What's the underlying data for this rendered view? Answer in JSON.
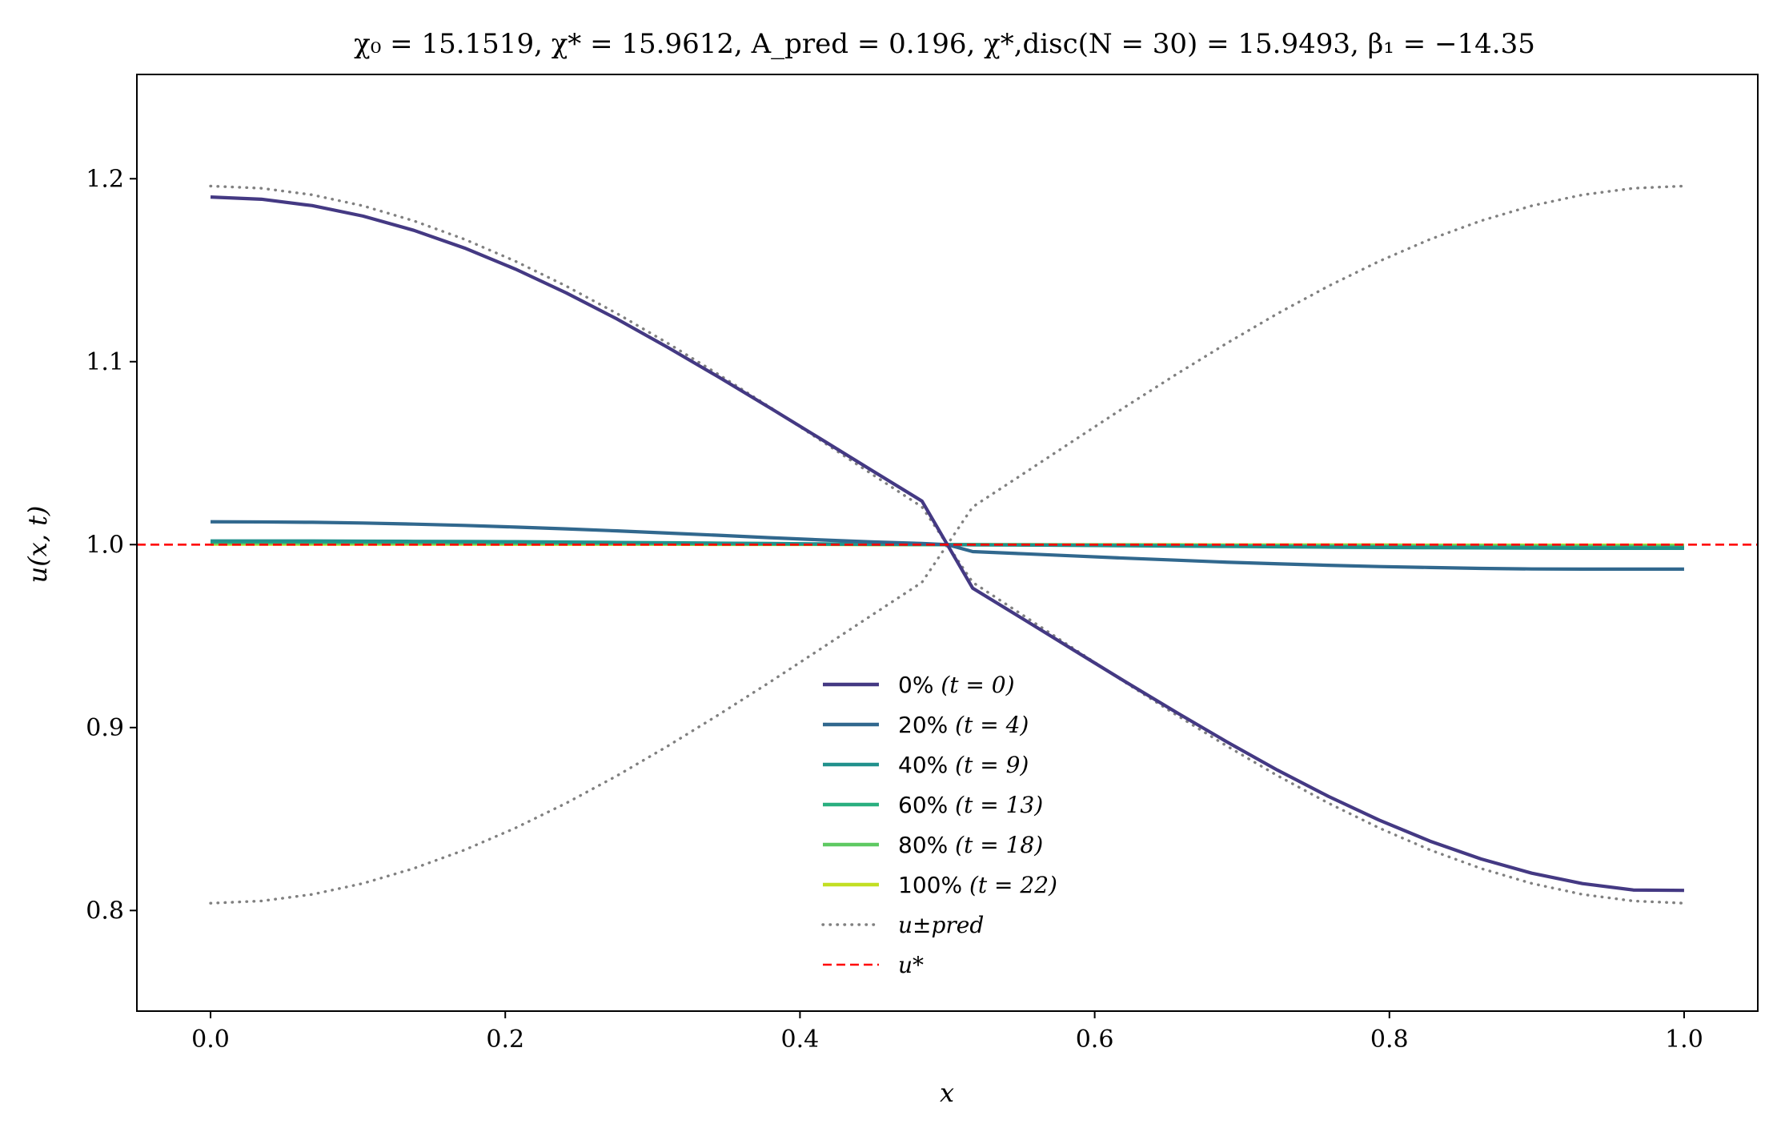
{
  "chart_data": {
    "type": "line",
    "title": "χ₀ = 15.1519,  χ* = 15.9612,  A_pred = 0.196,  χ*,disc(N = 30) = 15.9493,  β₁ = −14.35",
    "xlabel": "x",
    "ylabel": "u(x, t)",
    "xlim": [
      -0.05,
      1.05
    ],
    "ylim": [
      0.745,
      1.257
    ],
    "x_ticks": [
      0.0,
      0.2,
      0.4,
      0.6,
      0.8,
      1.0
    ],
    "x_tick_labels": [
      "0.0",
      "0.2",
      "0.4",
      "0.6",
      "0.8",
      "1.0"
    ],
    "y_ticks": [
      0.8,
      0.9,
      1.0,
      1.1,
      1.2
    ],
    "y_tick_labels": [
      "0.8",
      "0.9",
      "1.0",
      "1.1",
      "1.2"
    ],
    "grid": false,
    "legend_position": "lower-center",
    "x": [
      0.0,
      0.0345,
      0.069,
      0.1034,
      0.1379,
      0.1724,
      0.2069,
      0.2414,
      0.2759,
      0.3103,
      0.3448,
      0.3793,
      0.4138,
      0.4483,
      0.4828,
      0.5,
      0.5172,
      0.5517,
      0.5862,
      0.6207,
      0.6552,
      0.6897,
      0.7241,
      0.7586,
      0.7931,
      0.8276,
      0.8621,
      0.8966,
      0.931,
      0.9655,
      1.0
    ],
    "series": [
      {
        "name": "0% (t = 0)",
        "color": "#443983",
        "style": "solid",
        "values": [
          1.19,
          1.1888,
          1.1853,
          1.1796,
          1.1718,
          1.1621,
          1.1506,
          1.1376,
          1.1233,
          1.1078,
          1.0916,
          1.0749,
          1.0579,
          1.0408,
          1.0238,
          1.0,
          0.9762,
          0.9592,
          0.9421,
          0.9251,
          0.9084,
          0.8922,
          0.8767,
          0.8624,
          0.8494,
          0.8379,
          0.8282,
          0.8204,
          0.8147,
          0.8112,
          0.811
        ]
      },
      {
        "name": "20% (t = 4)",
        "color": "#31688e",
        "style": "solid",
        "values": [
          1.0125,
          1.0124,
          1.0122,
          1.0118,
          1.0112,
          1.0105,
          1.0096,
          1.0086,
          1.0075,
          1.0063,
          1.0051,
          1.0038,
          1.0026,
          1.0015,
          1.0006,
          1.0,
          0.9962,
          0.995,
          0.9938,
          0.9926,
          0.9915,
          0.9904,
          0.9895,
          0.9887,
          0.988,
          0.9875,
          0.987,
          0.9867,
          0.9866,
          0.9866,
          0.9866
        ]
      },
      {
        "name": "40% (t = 9)",
        "color": "#21918c",
        "style": "solid",
        "values": [
          1.002,
          1.002,
          1.002,
          1.0019,
          1.0018,
          1.0017,
          1.0016,
          1.0014,
          1.0012,
          1.001,
          1.0008,
          1.0006,
          1.0004,
          1.0002,
          1.0001,
          1.0,
          0.9999,
          0.9998,
          0.9996,
          0.9994,
          0.9992,
          0.999,
          0.9988,
          0.9986,
          0.9984,
          0.9983,
          0.9982,
          0.9981,
          0.998,
          0.998,
          0.998
        ]
      },
      {
        "name": "60% (t = 13)",
        "color": "#29af7f",
        "style": "solid",
        "values": [
          1.0015,
          1.0015,
          1.0015,
          1.0014,
          1.0014,
          1.0013,
          1.0012,
          1.0011,
          1.0009,
          1.0008,
          1.0006,
          1.0005,
          1.0003,
          1.0002,
          1.0001,
          1.0,
          0.9999,
          0.9998,
          0.9997,
          0.9995,
          0.9994,
          0.9992,
          0.9991,
          0.9989,
          0.9988,
          0.9987,
          0.9986,
          0.9986,
          0.9985,
          0.9985,
          0.9985
        ]
      },
      {
        "name": "80% (t = 18)",
        "color": "#5ec962",
        "style": "solid",
        "values": [
          1.0008,
          1.0008,
          1.0008,
          1.0008,
          1.0007,
          1.0007,
          1.0006,
          1.0006,
          1.0005,
          1.0004,
          1.0003,
          1.0002,
          1.0002,
          1.0001,
          1.0,
          1.0,
          1.0,
          0.9999,
          0.9998,
          0.9998,
          0.9997,
          0.9996,
          0.9995,
          0.9994,
          0.9994,
          0.9993,
          0.9993,
          0.9992,
          0.9992,
          0.9992,
          0.9992
        ]
      },
      {
        "name": "100% (t = 22)",
        "color": "#c2df23",
        "style": "solid",
        "values": [
          1.0003,
          1.0003,
          1.0003,
          1.0003,
          1.0003,
          1.0003,
          1.0002,
          1.0002,
          1.0002,
          1.0002,
          1.0001,
          1.0001,
          1.0001,
          1.0,
          1.0,
          1.0,
          1.0,
          1.0,
          0.9999,
          0.9999,
          0.9999,
          0.9998,
          0.9998,
          0.9998,
          0.9998,
          0.9997,
          0.9997,
          0.9997,
          0.9997,
          0.9997,
          0.9997
        ]
      },
      {
        "name": "u±pred",
        "color": "#808080",
        "style": "dotted",
        "values": [
          1.196,
          1.1948,
          1.1912,
          1.1852,
          1.177,
          1.1669,
          1.1549,
          1.1413,
          1.1263,
          1.1101,
          1.093,
          1.0753,
          1.0571,
          1.0388,
          1.0206,
          1.0,
          0.9794,
          0.9612,
          0.9429,
          0.9247,
          0.907,
          0.8899,
          0.8737,
          0.8587,
          0.8451,
          0.8331,
          0.823,
          0.8148,
          0.8088,
          0.8052,
          0.804
        ]
      },
      {
        "name": "",
        "color": "#808080",
        "style": "dotted",
        "values": [
          0.804,
          0.8052,
          0.8088,
          0.8148,
          0.823,
          0.8331,
          0.8451,
          0.8587,
          0.8737,
          0.8899,
          0.907,
          0.9247,
          0.9429,
          0.9612,
          0.9794,
          1.0,
          1.0206,
          1.0388,
          1.0571,
          1.0753,
          1.093,
          1.1101,
          1.1263,
          1.1413,
          1.1549,
          1.1669,
          1.177,
          1.1852,
          1.1912,
          1.1948,
          1.196
        ]
      }
    ],
    "reference_line": {
      "name": "u*",
      "y": 1.0,
      "color": "#ff0000",
      "style": "dashed"
    },
    "legend_entries": [
      {
        "label": "0% (t = 0)",
        "pct": "0%",
        "param": "(t = 0)",
        "color": "#443983",
        "style": "solid"
      },
      {
        "label": "20% (t = 4)",
        "pct": "20%",
        "param": "(t = 4)",
        "color": "#31688e",
        "style": "solid"
      },
      {
        "label": "40% (t = 9)",
        "pct": "40%",
        "param": "(t = 9)",
        "color": "#21918c",
        "style": "solid"
      },
      {
        "label": "60% (t = 13)",
        "pct": "60%",
        "param": "(t = 13)",
        "color": "#29af7f",
        "style": "solid"
      },
      {
        "label": "80% (t = 18)",
        "pct": "80%",
        "param": "(t = 18)",
        "color": "#5ec962",
        "style": "solid"
      },
      {
        "label": "100% (t = 22)",
        "pct": "100%",
        "param": "(t = 22)",
        "color": "#c2df23",
        "style": "solid"
      },
      {
        "label": "u±pred",
        "pct": "",
        "param": "u±pred",
        "color": "#808080",
        "style": "dotted"
      },
      {
        "label": "u*",
        "pct": "",
        "param": "u*",
        "color": "#ff0000",
        "style": "dashed"
      }
    ]
  }
}
